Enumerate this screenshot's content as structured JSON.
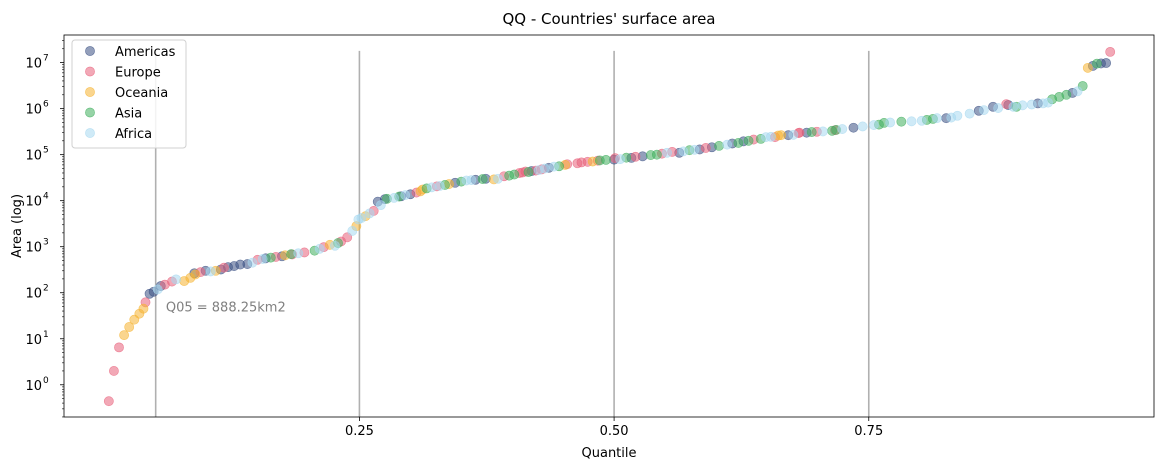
{
  "chart_data": {
    "type": "scatter",
    "title": "QQ - Countries' surface area",
    "xlabel": "Quantile",
    "ylabel": "Area (log)",
    "xlim": [
      -0.04,
      1.03
    ],
    "ylim_log10": [
      -0.7,
      7.6
    ],
    "y_scale": "log",
    "x_ticks": [
      {
        "value": 0.25,
        "label": "0.25"
      },
      {
        "value": 0.5,
        "label": "0.50"
      },
      {
        "value": 0.75,
        "label": "0.75"
      }
    ],
    "y_ticks": [
      {
        "exp": 0,
        "base": "10",
        "sup": "0"
      },
      {
        "exp": 1,
        "base": "10",
        "sup": "1"
      },
      {
        "exp": 2,
        "base": "10",
        "sup": "2"
      },
      {
        "exp": 3,
        "base": "10",
        "sup": "3"
      },
      {
        "exp": 4,
        "base": "10",
        "sup": "4"
      },
      {
        "exp": 5,
        "base": "10",
        "sup": "5"
      },
      {
        "exp": 6,
        "base": "10",
        "sup": "6"
      },
      {
        "exp": 7,
        "base": "10",
        "sup": "7"
      }
    ],
    "quantile_lines": [
      0.05,
      0.25,
      0.5,
      0.75
    ],
    "annotation": {
      "text": "Q05 = 888.25km2",
      "x": 0.06,
      "y": 50
    },
    "legend_position": "top-left",
    "series": [
      {
        "name": "Americas",
        "color": "#3a5083",
        "points": [
          [
            0.044,
            95
          ],
          [
            0.048,
            105
          ],
          [
            0.055,
            140
          ],
          [
            0.088,
            265
          ],
          [
            0.099,
            300
          ],
          [
            0.114,
            320
          ],
          [
            0.121,
            360
          ],
          [
            0.127,
            380
          ],
          [
            0.133,
            410
          ],
          [
            0.14,
            420
          ],
          [
            0.158,
            560
          ],
          [
            0.174,
            620
          ],
          [
            0.268,
            9500
          ],
          [
            0.275,
            10800
          ],
          [
            0.291,
            12500
          ],
          [
            0.3,
            13800
          ],
          [
            0.344,
            24500
          ],
          [
            0.364,
            28500
          ],
          [
            0.374,
            30000
          ],
          [
            0.419,
            44000
          ],
          [
            0.436,
            52000
          ],
          [
            0.5,
            78000
          ],
          [
            0.517,
            85000
          ],
          [
            0.528,
            92000
          ],
          [
            0.564,
            110000
          ],
          [
            0.584,
            130000
          ],
          [
            0.596,
            145000
          ],
          [
            0.616,
            175000
          ],
          [
            0.627,
            195000
          ],
          [
            0.671,
            265000
          ],
          [
            0.689,
            300000
          ],
          [
            0.735,
            385000
          ],
          [
            0.826,
            620000
          ],
          [
            0.858,
            900000
          ],
          [
            0.872,
            1100000
          ],
          [
            0.887,
            1200000
          ],
          [
            0.916,
            1300000
          ],
          [
            0.95,
            2200000
          ],
          [
            0.97,
            8500000
          ],
          [
            0.978,
            9600000
          ],
          [
            0.983,
            9800000
          ]
        ]
      },
      {
        "name": "Europe",
        "color": "#e8607a",
        "points": [
          [
            0.004,
            0.44
          ],
          [
            0.009,
            2.0
          ],
          [
            0.014,
            6.5
          ],
          [
            0.04,
            62
          ],
          [
            0.059,
            150
          ],
          [
            0.066,
            175
          ],
          [
            0.094,
            280
          ],
          [
            0.117,
            350
          ],
          [
            0.15,
            520
          ],
          [
            0.168,
            600
          ],
          [
            0.184,
            680
          ],
          [
            0.196,
            750
          ],
          [
            0.215,
            980
          ],
          [
            0.232,
            1300
          ],
          [
            0.238,
            1600
          ],
          [
            0.264,
            6000
          ],
          [
            0.306,
            15000
          ],
          [
            0.326,
            20500
          ],
          [
            0.392,
            34000
          ],
          [
            0.407,
            40000
          ],
          [
            0.41,
            41000
          ],
          [
            0.413,
            43000
          ],
          [
            0.423,
            45000
          ],
          [
            0.429,
            48000
          ],
          [
            0.454,
            62000
          ],
          [
            0.464,
            65000
          ],
          [
            0.468,
            68000
          ],
          [
            0.474,
            70000
          ],
          [
            0.484,
            74000
          ],
          [
            0.501,
            84000
          ],
          [
            0.521,
            90000
          ],
          [
            0.547,
            105000
          ],
          [
            0.557,
            115000
          ],
          [
            0.59,
            140000
          ],
          [
            0.637,
            213000
          ],
          [
            0.658,
            240000
          ],
          [
            0.681,
            295000
          ],
          [
            0.682,
            300000
          ],
          [
            0.699,
            315000
          ],
          [
            0.717,
            340000
          ],
          [
            0.885,
            1250000
          ],
          [
            0.987,
            17100000
          ]
        ]
      },
      {
        "name": "Oceania",
        "color": "#f5b331",
        "points": [
          [
            0.019,
            12
          ],
          [
            0.024,
            18
          ],
          [
            0.029,
            26
          ],
          [
            0.034,
            35
          ],
          [
            0.038,
            45
          ],
          [
            0.078,
            180
          ],
          [
            0.084,
            210
          ],
          [
            0.089,
            250
          ],
          [
            0.109,
            300
          ],
          [
            0.177,
            650
          ],
          [
            0.221,
            1100
          ],
          [
            0.247,
            2800
          ],
          [
            0.256,
            4600
          ],
          [
            0.31,
            16000
          ],
          [
            0.312,
            17500
          ],
          [
            0.338,
            23000
          ],
          [
            0.382,
            29000
          ],
          [
            0.452,
            60000
          ],
          [
            0.479,
            71000
          ],
          [
            0.661,
            260000
          ],
          [
            0.664,
            265000
          ],
          [
            0.965,
            7700000
          ]
        ]
      },
      {
        "name": "Asia",
        "color": "#3fae5d",
        "points": [
          [
            0.163,
            580
          ],
          [
            0.183,
            690
          ],
          [
            0.206,
            820
          ],
          [
            0.229,
            1200
          ],
          [
            0.277,
            11000
          ],
          [
            0.289,
            12300
          ],
          [
            0.316,
            18500
          ],
          [
            0.334,
            22000
          ],
          [
            0.35,
            26000
          ],
          [
            0.371,
            29500
          ],
          [
            0.397,
            35000
          ],
          [
            0.402,
            37000
          ],
          [
            0.416,
            42000
          ],
          [
            0.446,
            56000
          ],
          [
            0.486,
            75000
          ],
          [
            0.492,
            77000
          ],
          [
            0.512,
            86000
          ],
          [
            0.536,
            98000
          ],
          [
            0.542,
            100000
          ],
          [
            0.574,
            125000
          ],
          [
            0.603,
            155000
          ],
          [
            0.622,
            180000
          ],
          [
            0.632,
            200000
          ],
          [
            0.644,
            220000
          ],
          [
            0.694,
            310000
          ],
          [
            0.714,
            330000
          ],
          [
            0.718,
            345000
          ],
          [
            0.76,
            450000
          ],
          [
            0.765,
            490000
          ],
          [
            0.782,
            520000
          ],
          [
            0.807,
            570000
          ],
          [
            0.813,
            600000
          ],
          [
            0.895,
            1100000
          ],
          [
            0.93,
            1600000
          ],
          [
            0.937,
            1800000
          ],
          [
            0.944,
            2000000
          ],
          [
            0.96,
            3100000
          ],
          [
            0.974,
            9500000
          ]
        ]
      },
      {
        "name": "Africa",
        "color": "#a8d8f0",
        "points": [
          [
            0.052,
            118
          ],
          [
            0.07,
            195
          ],
          [
            0.104,
            290
          ],
          [
            0.145,
            450
          ],
          [
            0.155,
            540
          ],
          [
            0.19,
            720
          ],
          [
            0.211,
            900
          ],
          [
            0.226,
            1050
          ],
          [
            0.243,
            2200
          ],
          [
            0.249,
            3900
          ],
          [
            0.252,
            4200
          ],
          [
            0.26,
            5300
          ],
          [
            0.271,
            8000
          ],
          [
            0.284,
            11500
          ],
          [
            0.295,
            13200
          ],
          [
            0.321,
            19500
          ],
          [
            0.329,
            21000
          ],
          [
            0.355,
            27500
          ],
          [
            0.36,
            28000
          ],
          [
            0.386,
            30000
          ],
          [
            0.426,
            46000
          ],
          [
            0.432,
            50000
          ],
          [
            0.441,
            55000
          ],
          [
            0.506,
            80000
          ],
          [
            0.552,
            110000
          ],
          [
            0.568,
            118000
          ],
          [
            0.579,
            128000
          ],
          [
            0.611,
            165000
          ],
          [
            0.649,
            240000
          ],
          [
            0.654,
            245000
          ],
          [
            0.676,
            270000
          ],
          [
            0.705,
            320000
          ],
          [
            0.724,
            360000
          ],
          [
            0.744,
            410000
          ],
          [
            0.755,
            440000
          ],
          [
            0.771,
            500000
          ],
          [
            0.792,
            530000
          ],
          [
            0.802,
            545000
          ],
          [
            0.817,
            620000
          ],
          [
            0.831,
            640000
          ],
          [
            0.837,
            700000
          ],
          [
            0.849,
            780000
          ],
          [
            0.863,
            930000
          ],
          [
            0.877,
            1030000
          ],
          [
            0.892,
            1100000
          ],
          [
            0.901,
            1180000
          ],
          [
            0.91,
            1230000
          ],
          [
            0.921,
            1300000
          ],
          [
            0.926,
            1350000
          ],
          [
            0.955,
            2380000
          ]
        ]
      }
    ]
  }
}
